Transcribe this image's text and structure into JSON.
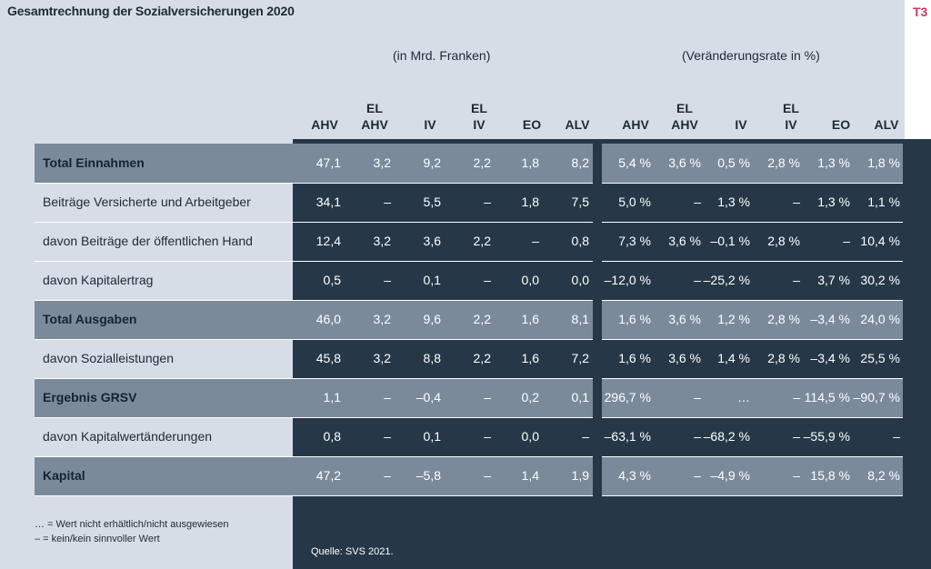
{
  "title": "Gesamtrechnung der Sozialversicherungen 2020",
  "tag": "T3",
  "group_left": "(in Mrd. Franken)",
  "group_right": "(Veränderungsrate in %)",
  "columns": [
    {
      "l1": "",
      "l2": "AHV"
    },
    {
      "l1": "EL",
      "l2": "AHV"
    },
    {
      "l1": "",
      "l2": "IV"
    },
    {
      "l1": "EL",
      "l2": "IV"
    },
    {
      "l1": "",
      "l2": "EO"
    },
    {
      "l1": "",
      "l2": "ALV"
    },
    {
      "l1": "",
      "l2": "AHV"
    },
    {
      "l1": "EL",
      "l2": "AHV"
    },
    {
      "l1": "",
      "l2": "IV"
    },
    {
      "l1": "EL",
      "l2": "IV"
    },
    {
      "l1": "",
      "l2": "EO"
    },
    {
      "l1": "",
      "l2": "ALV"
    }
  ],
  "rows": [
    {
      "label": "Total Einnahmen",
      "bold": true,
      "values": [
        "47,1",
        "3,2",
        "9,2",
        "2,2",
        "1,8",
        "8,2",
        "5,4 %",
        "3,6 %",
        "0,5 %",
        "2,8 %",
        "1,3 %",
        "1,8 %"
      ]
    },
    {
      "label": "Beiträge Versicherte und Arbeitgeber",
      "bold": false,
      "values": [
        "34,1",
        "–",
        "5,5",
        "–",
        "1,8",
        "7,5",
        "5,0 %",
        "–",
        "1,3 %",
        "–",
        "1,3 %",
        "1,1 %"
      ]
    },
    {
      "label": "davon Beiträge der öffentlichen Hand",
      "bold": false,
      "values": [
        "12,4",
        "3,2",
        "3,6",
        "2,2",
        "–",
        "0,8",
        "7,3 %",
        "3,6 %",
        "–0,1 %",
        "2,8 %",
        "–",
        "10,4 %"
      ]
    },
    {
      "label": "davon Kapitalertrag",
      "bold": false,
      "values": [
        "0,5",
        "–",
        "0,1",
        "–",
        "0,0",
        "0,0",
        "–12,0 %",
        "–",
        "–25,2 %",
        "–",
        "3,7 %",
        "30,2 %"
      ]
    },
    {
      "label": "Total Ausgaben",
      "bold": true,
      "values": [
        "46,0",
        "3,2",
        "9,6",
        "2,2",
        "1,6",
        "8,1",
        "1,6 %",
        "3,6 %",
        "1,2 %",
        "2,8 %",
        "–3,4 %",
        "24,0 %"
      ]
    },
    {
      "label": "davon Sozialleistungen",
      "bold": false,
      "values": [
        "45,8",
        "3,2",
        "8,8",
        "2,2",
        "1,6",
        "7,2",
        "1,6 %",
        "3,6 %",
        "1,4 %",
        "2,8 %",
        "–3,4 %",
        "25,5 %"
      ]
    },
    {
      "label": "Ergebnis GRSV",
      "bold": true,
      "values": [
        "1,1",
        "–",
        "–0,4",
        "–",
        "0,2",
        "0,1",
        "296,7 %",
        "–",
        "…",
        "–",
        "114,5 %",
        "–90,7 %"
      ]
    },
    {
      "label": "davon Kapitalwertänderungen",
      "bold": false,
      "values": [
        "0,8",
        "–",
        "0,1",
        "–",
        "0,0",
        "–",
        "–63,1 %",
        "–",
        "–68,2 %",
        "–",
        "–55,9 %",
        "–"
      ]
    },
    {
      "label": "Kapital",
      "bold": true,
      "values": [
        "47,2",
        "–",
        "–5,8",
        "–",
        "1,4",
        "1,9",
        "4,3 %",
        "–",
        "–4,9 %",
        "–",
        "15,8 %",
        "8,2 %"
      ]
    }
  ],
  "legend": [
    "… = Wert nicht erhältlich/nicht ausgewiesen",
    "– = kein/kein sinnvoller Wert"
  ],
  "source": "Quelle: SVS 2021."
}
